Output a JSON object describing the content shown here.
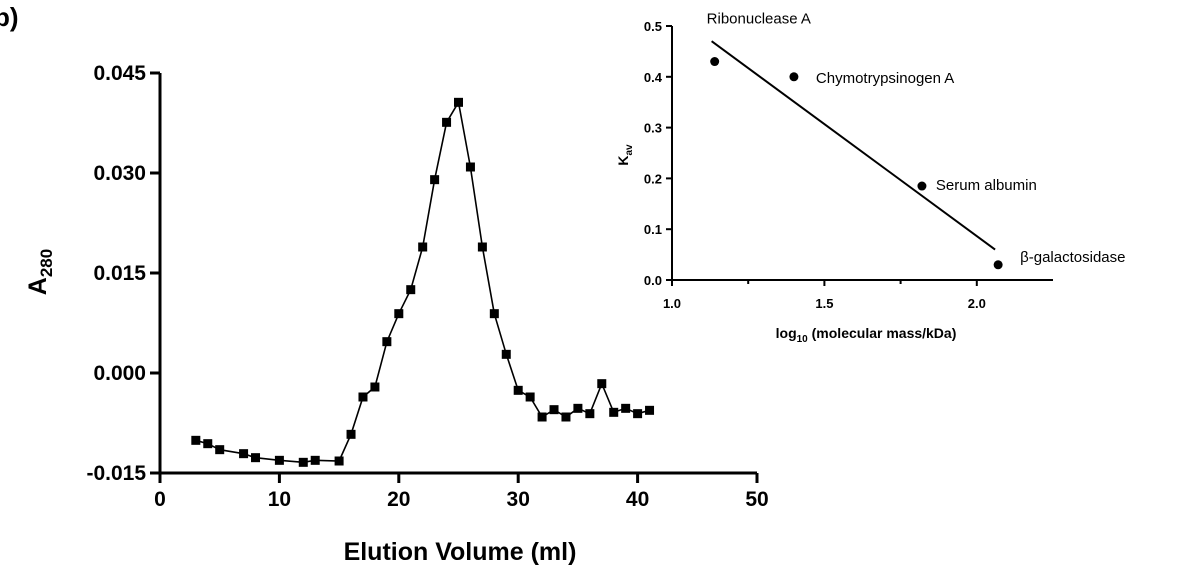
{
  "panel_label": "b)",
  "chart_data": [
    {
      "type": "line",
      "title": "",
      "xlabel": "Elution Volume (ml)",
      "ylabel": {
        "main": "A",
        "sub": "280"
      },
      "xlim": [
        0,
        50
      ],
      "ylim": [
        -0.015,
        0.045
      ],
      "x_ticks": [
        0,
        10,
        20,
        30,
        40,
        50
      ],
      "x_tick_labels": [
        "0",
        "10",
        "20",
        "30",
        "40",
        "50"
      ],
      "y_ticks": [
        -0.015,
        0,
        0.015,
        0.03,
        0.045
      ],
      "y_tick_labels": [
        "-0.015",
        "0.000",
        "0.015",
        "0.030",
        "0.045"
      ],
      "grid": false,
      "marker": "square",
      "series": [
        {
          "color": "#000000",
          "x": [
            3,
            4,
            5,
            7,
            8,
            10,
            12,
            13,
            15,
            16,
            17,
            18,
            19,
            20,
            21,
            22,
            23,
            24,
            25,
            26,
            27,
            28,
            29,
            30,
            31,
            32,
            33,
            34,
            35,
            36,
            37,
            38,
            39,
            40,
            41
          ],
          "y": [
            -0.0101,
            -0.0106,
            -0.0115,
            -0.0121,
            -0.0127,
            -0.0131,
            -0.0134,
            -0.0131,
            -0.0132,
            -0.0092,
            -0.0036,
            -0.0021,
            0.0047,
            0.0089,
            0.0125,
            0.0189,
            0.029,
            0.0376,
            0.0406,
            0.0309,
            0.0189,
            0.0089,
            0.0028,
            -0.0026,
            -0.0036,
            -0.0066,
            -0.0055,
            -0.0066,
            -0.0053,
            -0.0061,
            -0.0016,
            -0.0059,
            -0.0053,
            -0.0061,
            -0.0056
          ]
        }
      ]
    },
    {
      "type": "scatter",
      "title": "",
      "xlabel": {
        "pre": "log",
        "sub": "10",
        "post": " (molecular mass/kDa)"
      },
      "ylabel": {
        "main": "K",
        "sub": "av"
      },
      "xlim": [
        1.0,
        2.25
      ],
      "ylim": [
        0.0,
        0.5
      ],
      "x_ticks": [
        1.0,
        1.5,
        2.0
      ],
      "x_tick_labels": [
        "1.0",
        "1.5",
        "2.0"
      ],
      "y_ticks": [
        0.0,
        0.1,
        0.2,
        0.3,
        0.4,
        0.5
      ],
      "y_tick_labels": [
        "0.0",
        "0.1",
        "0.2",
        "0.3",
        "0.4",
        "0.5"
      ],
      "grid": false,
      "points": [
        {
          "label": "Ribonuclease A",
          "x": 1.14,
          "y": 0.43
        },
        {
          "label": "Chymotrypsinogen A",
          "x": 1.4,
          "y": 0.4
        },
        {
          "label": "Serum albumin",
          "x": 1.82,
          "y": 0.185
        },
        {
          "label": "β-galactosidase",
          "x": 2.07,
          "y": 0.03
        }
      ],
      "fit_line": {
        "x": [
          1.13,
          2.06
        ],
        "y": [
          0.47,
          0.06
        ]
      }
    }
  ]
}
